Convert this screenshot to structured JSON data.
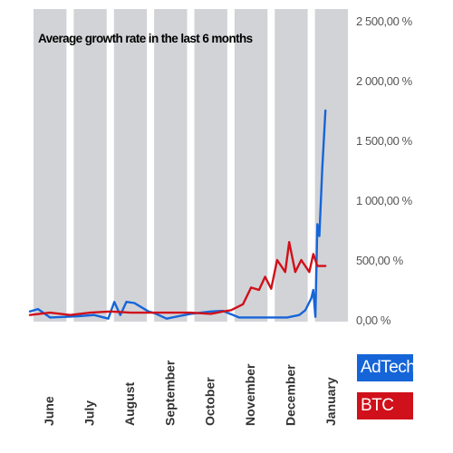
{
  "chart_data": {
    "type": "line",
    "title": "Average growth rate in the last 6 months",
    "xlabel": "",
    "ylabel": "",
    "categories": [
      "June",
      "July",
      "August",
      "September",
      "October",
      "November",
      "December",
      "January"
    ],
    "y_ticks": [
      "0,00 %",
      "500,00 %",
      "1 000,00 %",
      "1 500,00 %",
      "2 000,00 %",
      "2 500,00 %"
    ],
    "ylim": [
      0,
      2500
    ],
    "axis_side": "right",
    "grid": true,
    "background_bands": "alternating gray/white columns",
    "legend_position": "right-bottom",
    "x_range": [
      0,
      8
    ],
    "series": [
      {
        "name": "AdTech",
        "color": "#1565d8",
        "x": [
          0.0,
          0.2,
          0.5,
          0.9,
          1.2,
          1.6,
          1.95,
          2.1,
          2.25,
          2.4,
          2.6,
          2.95,
          3.1,
          3.4,
          3.7,
          4.0,
          4.5,
          4.8,
          5.2,
          5.6,
          6.0,
          6.4,
          6.7,
          6.85,
          7.0,
          7.05,
          7.1,
          7.15,
          7.2,
          7.27,
          7.35
        ],
        "values": [
          70,
          90,
          20,
          25,
          30,
          40,
          10,
          150,
          40,
          150,
          140,
          70,
          55,
          10,
          30,
          50,
          70,
          75,
          20,
          20,
          20,
          20,
          40,
          80,
          180,
          250,
          25,
          800,
          700,
          1250,
          1750
        ]
      },
      {
        "name": "BTC",
        "color": "#d0101a",
        "x": [
          0.0,
          0.5,
          1.0,
          1.5,
          2.0,
          2.5,
          3.0,
          3.5,
          4.0,
          4.5,
          4.8,
          5.0,
          5.3,
          5.5,
          5.7,
          5.85,
          6.0,
          6.15,
          6.35,
          6.45,
          6.6,
          6.75,
          6.95,
          7.05,
          7.15,
          7.25,
          7.35
        ],
        "values": [
          40,
          60,
          40,
          60,
          70,
          60,
          60,
          60,
          60,
          50,
          70,
          80,
          130,
          270,
          250,
          360,
          260,
          500,
          400,
          650,
          400,
          500,
          400,
          550,
          450,
          450,
          450
        ]
      }
    ]
  }
}
